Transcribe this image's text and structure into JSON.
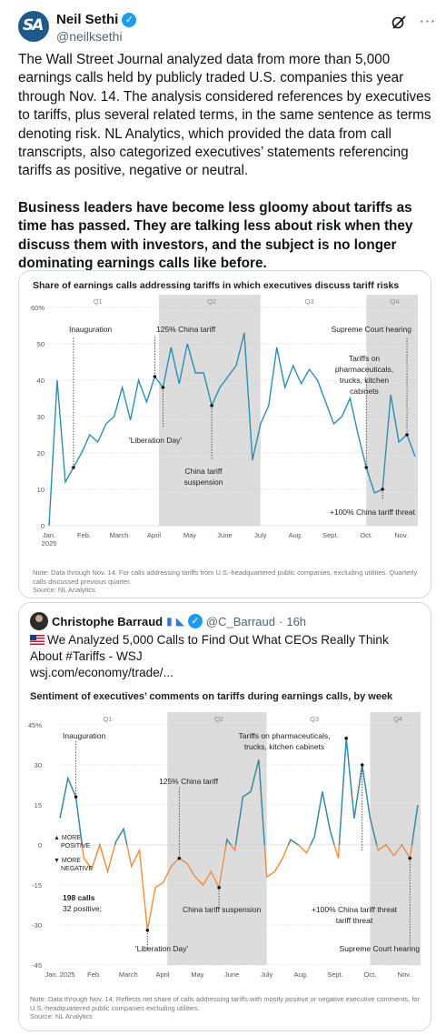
{
  "tweet": {
    "author_name": "Neil Sethi",
    "author_handle": "@neilksethi",
    "avatar_letters": "SA",
    "paragraph1": "The Wall Street Journal analyzed data from more than 5,000 earnings calls held by publicly traded U.S. companies this year through Nov. 14. The analysis considered references by executives to tariffs, plus several related terms, in the same sentence as terms denoting risk. NL Analytics, which provided the data from call transcripts, also categorized executives’ statements referencing tariffs as positive, negative or neutral.",
    "paragraph2": "Business leaders have become less gloomy about tariffs as time has passed. They are talking less about risk when they discuss them with investors, and the subject is no longer dominating earnings calls like before."
  },
  "quote": {
    "author_name": "Christophe Barraud",
    "author_handle": "@C_Barraud",
    "time": "16h",
    "text": "We Analyzed 5,000 Calls to Find Out What CEOs Really Think About #Tariffs - WSJ",
    "link": "wsj.com/economy/trade/..."
  },
  "icons": {
    "verified": "verified-badge-icon",
    "grok": "grok-icon",
    "more": "more-icon",
    "flag": "flag-icon",
    "whale": "whale-icon"
  },
  "colors": {
    "line": "#2b8fb3",
    "negative": "#f08c3b",
    "shade": "#d9d9d9",
    "verified": "#1d9bf0"
  },
  "chart_data": [
    {
      "type": "line",
      "title": "Share of earnings calls addressing tariffs in which executives discuss tariff risks",
      "ylim": [
        0,
        60
      ],
      "yticks": [
        "0",
        "10",
        "20",
        "30",
        "40",
        "50",
        "60%"
      ],
      "xticks": [
        "Jan.\n2025",
        "Feb.",
        "March",
        "April",
        "May",
        "June",
        "July",
        "Aug.",
        "Sept.",
        "Oct.",
        "Nov."
      ],
      "quarters": [
        "Q1",
        "Q2",
        "Q3",
        "Q4"
      ],
      "x_week_range": [
        1,
        46
      ],
      "series": [
        {
          "x": [
            1,
            2,
            3,
            4,
            5,
            6,
            7,
            8,
            9,
            10,
            11,
            12,
            13,
            14,
            15,
            16,
            17,
            18,
            19,
            20,
            21,
            22,
            23,
            24,
            25,
            26,
            27,
            28,
            29,
            30,
            31,
            32,
            33,
            34,
            35,
            36,
            37,
            38,
            39,
            40,
            41,
            42,
            43,
            44,
            45,
            46
          ],
          "values": [
            0,
            40,
            12,
            16,
            20,
            25,
            23,
            28,
            30,
            38,
            29,
            40,
            34,
            41,
            38,
            49,
            39,
            50,
            42,
            42,
            33,
            38,
            41,
            44,
            53,
            18,
            28,
            33,
            49,
            38,
            44,
            39,
            43,
            40,
            34,
            28,
            30,
            35,
            25,
            16,
            9,
            10,
            36,
            23,
            25,
            19
          ]
        }
      ],
      "annotations": [
        "Inauguration",
        "125% China tariff",
        "Supreme Court hearing",
        "Tariffs on pharmaceuticals, trucks, kitchen cabinets",
        "'Liberation Day'",
        "China tariff suspension",
        "+100% China tariff threat"
      ],
      "note": "Note: Data through Nov. 14. For calls addressing tariffs from U.S.-headquartered public companies, excluding utilities. Quarterly calls discussed previous quarter.",
      "source": "Source: NL Analytics"
    },
    {
      "type": "line",
      "title": "Sentiment of executives’ comments on tariffs during earnings calls, by week",
      "ylim": [
        -45,
        45
      ],
      "yticks": [
        "-45",
        "-30",
        "-15",
        "0",
        "15",
        "30",
        "45%"
      ],
      "xticks": [
        "Jan. 2025",
        "Feb.",
        "March",
        "April",
        "May",
        "June",
        "July",
        "Aug.",
        "Sept.",
        "Oct.",
        "Nov."
      ],
      "quarters": [
        "Q1",
        "Q2",
        "Q3",
        "Q4"
      ],
      "x_week_range": [
        1,
        46
      ],
      "legend": [
        "MORE POSITIVE",
        "MORE NEGATIVE"
      ],
      "series": [
        {
          "x": [
            1,
            2,
            3,
            4,
            5,
            6,
            7,
            8,
            9,
            10,
            11,
            12,
            13,
            14,
            15,
            16,
            17,
            18,
            19,
            20,
            21,
            22,
            23,
            24,
            25,
            26,
            27,
            28,
            29,
            30,
            31,
            32,
            33,
            34,
            35,
            36,
            37,
            38,
            39,
            40,
            41,
            42,
            43,
            44,
            45,
            46
          ],
          "values": [
            10,
            25,
            18,
            -5,
            -9,
            0,
            -10,
            1,
            6,
            -8,
            -2,
            -32,
            -16,
            -14,
            -8,
            -5,
            -7,
            -12,
            -15,
            -10,
            -16,
            2,
            -2,
            18,
            20,
            32,
            -12,
            -10,
            -5,
            2,
            0,
            -3,
            3,
            20,
            5,
            -5,
            40,
            10,
            30,
            10,
            -2,
            0,
            -4,
            0,
            -5,
            15
          ]
        }
      ],
      "annotations": [
        "Inauguration",
        "Tariffs on pharmaceuticals, trucks, kitchen cabinets",
        "125% China tariff",
        "198 calls",
        "32 positive;",
        "China tariff suspension",
        "+100% China tariff threat",
        "'Liberation Day'",
        "Supreme Court hearing"
      ],
      "note": "Note: Data through Nov. 14. Reflects net share of calls addressing tariffs with mostly positive or negative executive comments, for U.S.-headquartered public companies excluding utilities.",
      "source": "Source: NL Analytics"
    }
  ]
}
